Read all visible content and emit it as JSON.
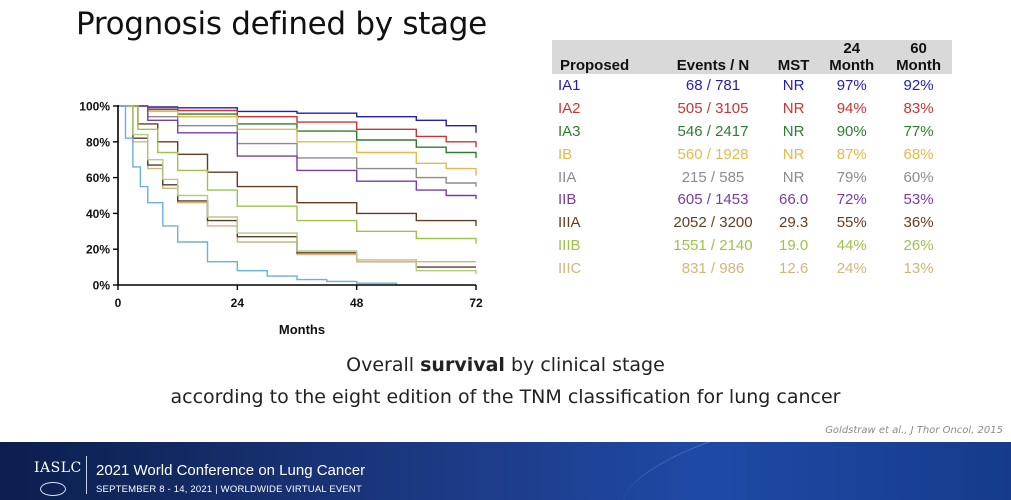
{
  "slide": {
    "title": "Prognosis defined by stage",
    "caption_prefix": "Overall ",
    "caption_bold": "survival",
    "caption_suffix": " by clinical stage",
    "caption_line2": "according to the eight edition of the TNM classification for lung cancer",
    "citation": "Goldstraw  et al., J Thor Oncol, 2015"
  },
  "footer": {
    "org": "IASLC",
    "conference": "2021 World Conference on Lung Cancer",
    "dates": "SEPTEMBER 8 - 14, 2021 | WORLDWIDE VIRTUAL EVENT"
  },
  "table": {
    "headers": [
      "Proposed",
      "Events / N",
      "MST",
      "24 Month",
      "60 Month"
    ],
    "header_lines": [
      [
        "",
        "Proposed"
      ],
      [
        "",
        "Events / N"
      ],
      [
        "",
        "MST"
      ],
      [
        "24",
        "Month"
      ],
      [
        "60",
        "Month"
      ]
    ],
    "rows": [
      {
        "stage": "IA1",
        "events_n": "68 / 781",
        "mst": "NR",
        "m24": "97%",
        "m60": "92%",
        "color": "#1f1fb4"
      },
      {
        "stage": "IA2",
        "events_n": "505 / 3105",
        "mst": "NR",
        "m24": "94%",
        "m60": "83%",
        "color": "#d03232"
      },
      {
        "stage": "IA3",
        "events_n": "546 / 2417",
        "mst": "NR",
        "m24": "90%",
        "m60": "77%",
        "color": "#2e7d2e"
      },
      {
        "stage": "IB",
        "events_n": "560 / 1928",
        "mst": "NR",
        "m24": "87%",
        "m60": "68%",
        "color": "#e8b84a"
      },
      {
        "stage": "IIA",
        "events_n": "215 / 585",
        "mst": "NR",
        "m24": "79%",
        "m60": "60%",
        "color": "#8c8c8c"
      },
      {
        "stage": "IIB",
        "events_n": "605 / 1453",
        "mst": "66.0",
        "m24": "72%",
        "m60": "53%",
        "color": "#7a3aa8"
      },
      {
        "stage": "IIIA",
        "events_n": "2052 / 3200",
        "mst": "29.3",
        "m24": "55%",
        "m60": "36%",
        "color": "#6a3a1e"
      },
      {
        "stage": "IIIB",
        "events_n": "1551 / 2140",
        "mst": "19.0",
        "m24": "44%",
        "m60": "26%",
        "color": "#9cc44a"
      },
      {
        "stage": "IIIC",
        "events_n": "831 / 986",
        "mst": "12.6",
        "m24": "24%",
        "m60": "13%",
        "color": "#d4b47a"
      }
    ]
  },
  "chart_data": {
    "type": "line",
    "xlabel": "Months",
    "ylabel": "",
    "x_ticks": [
      0,
      24,
      48,
      72
    ],
    "y_ticks": [
      0,
      20,
      40,
      60,
      80,
      100
    ],
    "y_tick_labels": [
      "0%",
      "20%",
      "40%",
      "60%",
      "80%",
      "100%"
    ],
    "xlim": [
      0,
      72
    ],
    "ylim": [
      0,
      100
    ],
    "grid": false,
    "series": [
      {
        "color": "#1f1fb4",
        "x": [
          0,
          6,
          12,
          24,
          36,
          48,
          60,
          66,
          72
        ],
        "y": [
          100,
          99.5,
          99,
          97,
          96,
          94,
          92,
          89,
          85
        ]
      },
      {
        "color": "#d03232",
        "x": [
          0,
          6,
          12,
          24,
          36,
          48,
          60,
          66,
          72
        ],
        "y": [
          100,
          99,
          97.5,
          94,
          91,
          87,
          83,
          80,
          77
        ]
      },
      {
        "color": "#2e7d2e",
        "x": [
          0,
          6,
          12,
          24,
          36,
          48,
          60,
          66,
          72
        ],
        "y": [
          100,
          98,
          95.5,
          90,
          86,
          81,
          77,
          74,
          71
        ]
      },
      {
        "color": "#e8b84a",
        "x": [
          0,
          6,
          12,
          24,
          36,
          48,
          60,
          66,
          72
        ],
        "y": [
          100,
          97,
          94,
          87,
          80,
          74,
          68,
          65,
          61
        ]
      },
      {
        "color": "#8c8c8c",
        "x": [
          0,
          6,
          12,
          24,
          36,
          48,
          60,
          66,
          72
        ],
        "y": [
          100,
          94,
          89,
          79,
          71,
          65,
          60,
          57,
          55
        ]
      },
      {
        "color": "#7a3aa8",
        "x": [
          0,
          6,
          12,
          24,
          36,
          48,
          60,
          66,
          72
        ],
        "y": [
          100,
          92,
          85,
          72,
          64,
          58,
          53,
          50,
          48
        ]
      },
      {
        "color": "#6a3a1e",
        "x": [
          0,
          4,
          8,
          12,
          18,
          24,
          36,
          48,
          60,
          72
        ],
        "y": [
          100,
          90,
          80,
          73,
          63,
          55,
          46,
          40,
          36,
          33
        ]
      },
      {
        "color": "#9cc44a",
        "x": [
          0,
          4,
          8,
          12,
          18,
          24,
          36,
          48,
          60,
          72
        ],
        "y": [
          100,
          87,
          74,
          64,
          53,
          44,
          36,
          30,
          26,
          23
        ]
      },
      {
        "color": "#d4b47a",
        "x": [
          0,
          3,
          6,
          9,
          12,
          18,
          24,
          36,
          48,
          60,
          72
        ],
        "y": [
          100,
          80,
          65,
          54,
          46,
          33,
          24,
          17,
          14,
          13,
          13
        ]
      },
      {
        "color": "#5a3a2a",
        "x": [
          0,
          3,
          6,
          9,
          12,
          18,
          24,
          36,
          48,
          60,
          72
        ],
        "y": [
          100,
          82,
          67,
          56,
          47,
          36,
          27,
          18,
          13,
          10,
          10
        ]
      },
      {
        "color": "#b2cc80",
        "x": [
          0,
          3,
          6,
          9,
          12,
          18,
          24,
          36,
          48,
          60,
          72
        ],
        "y": [
          100,
          84,
          70,
          59,
          50,
          38,
          29,
          19,
          13,
          8,
          6
        ]
      },
      {
        "color": "#6ab0dc",
        "x": [
          0,
          1.5,
          3,
          4.5,
          6,
          9,
          12,
          18,
          24,
          30,
          36,
          42,
          48,
          56
        ],
        "y": [
          100,
          82,
          66,
          55,
          46,
          33,
          24,
          13,
          8,
          5,
          3,
          2,
          1,
          0
        ]
      }
    ]
  }
}
